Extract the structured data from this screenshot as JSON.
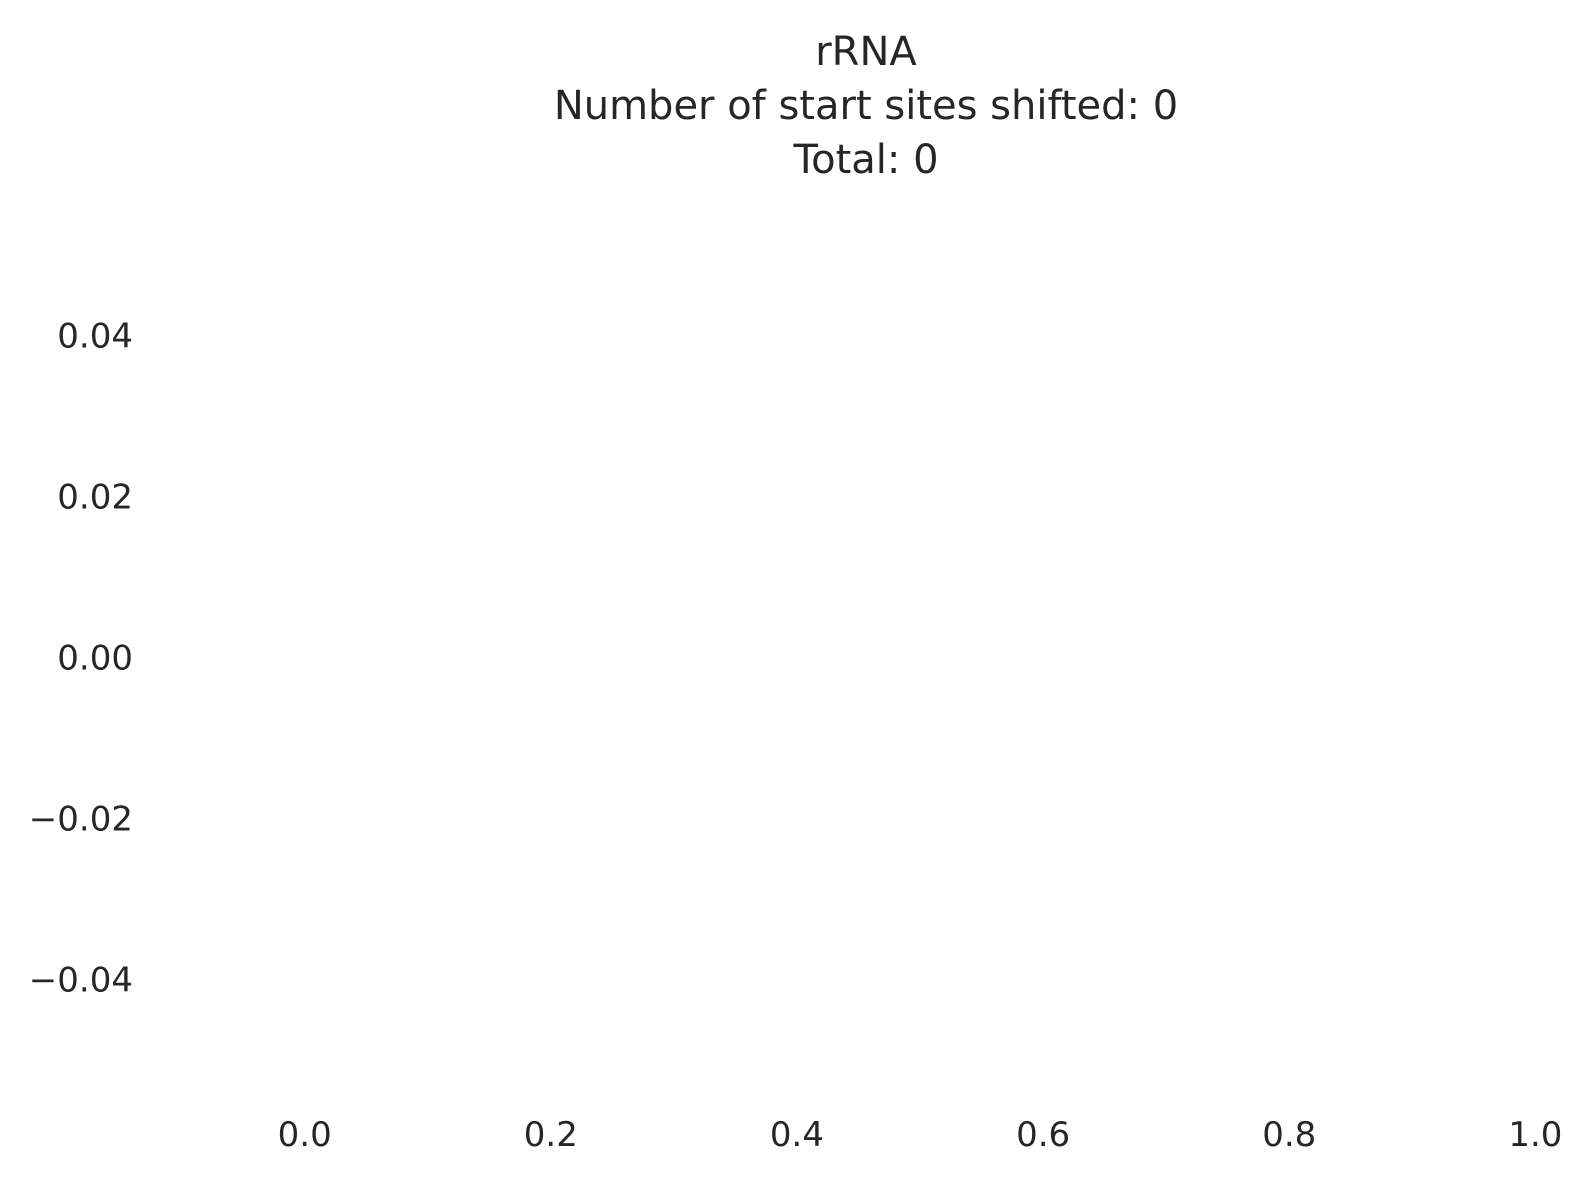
{
  "chart_data": {
    "type": "scatter",
    "title_lines": [
      "rRNA",
      "Number of start sites shifted: 0",
      "Total: 0"
    ],
    "xlabel": "",
    "ylabel": "",
    "x": [],
    "y": [],
    "xlim": [
      -0.12,
      1.02
    ],
    "ylim": [
      -0.055,
      0.055
    ],
    "x_ticks": [
      0.0,
      0.2,
      0.4,
      0.6,
      0.8,
      1.0
    ],
    "x_tick_labels": [
      "0.0",
      "0.2",
      "0.4",
      "0.6",
      "0.8",
      "1.0"
    ],
    "y_ticks": [
      0.04,
      0.02,
      0.0,
      -0.02,
      -0.04
    ],
    "y_tick_labels": [
      "0.04",
      "0.02",
      "0.00",
      "−0.02",
      "−0.04"
    ],
    "grid": false,
    "background_color": "#ffffff",
    "text_color": "#262626"
  }
}
